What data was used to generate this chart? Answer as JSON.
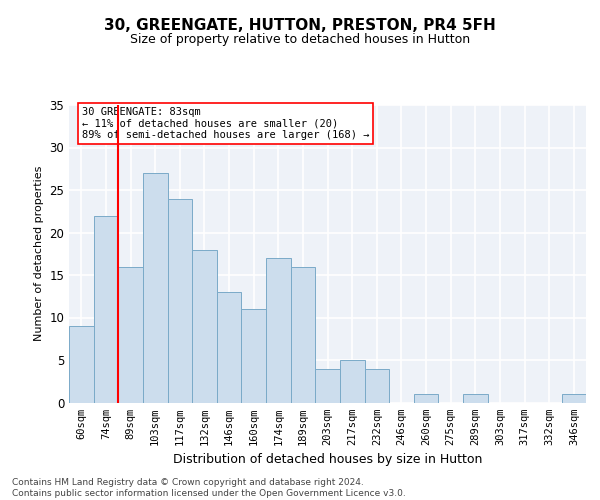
{
  "title1": "30, GREENGATE, HUTTON, PRESTON, PR4 5FH",
  "title2": "Size of property relative to detached houses in Hutton",
  "xlabel": "Distribution of detached houses by size in Hutton",
  "ylabel": "Number of detached properties",
  "categories": [
    "60sqm",
    "74sqm",
    "89sqm",
    "103sqm",
    "117sqm",
    "132sqm",
    "146sqm",
    "160sqm",
    "174sqm",
    "189sqm",
    "203sqm",
    "217sqm",
    "232sqm",
    "246sqm",
    "260sqm",
    "275sqm",
    "289sqm",
    "303sqm",
    "317sqm",
    "332sqm",
    "346sqm"
  ],
  "values": [
    9,
    22,
    16,
    27,
    24,
    18,
    13,
    11,
    17,
    16,
    4,
    5,
    4,
    0,
    1,
    0,
    1,
    0,
    0,
    0,
    1
  ],
  "bar_color": "#ccdded",
  "bar_edge_color": "#7aaac8",
  "vline_x": 1.5,
  "vline_color": "red",
  "annotation_text": "30 GREENGATE: 83sqm\n← 11% of detached houses are smaller (20)\n89% of semi-detached houses are larger (168) →",
  "annotation_box_color": "white",
  "annotation_box_edge_color": "red",
  "ylim": [
    0,
    35
  ],
  "yticks": [
    0,
    5,
    10,
    15,
    20,
    25,
    30,
    35
  ],
  "footer": "Contains HM Land Registry data © Crown copyright and database right 2024.\nContains public sector information licensed under the Open Government Licence v3.0.",
  "bg_color": "#eef2f8",
  "grid_color": "white",
  "title1_fontsize": 11,
  "title2_fontsize": 9,
  "ylabel_fontsize": 8,
  "xlabel_fontsize": 9,
  "tick_fontsize": 7.5,
  "footer_fontsize": 6.5
}
